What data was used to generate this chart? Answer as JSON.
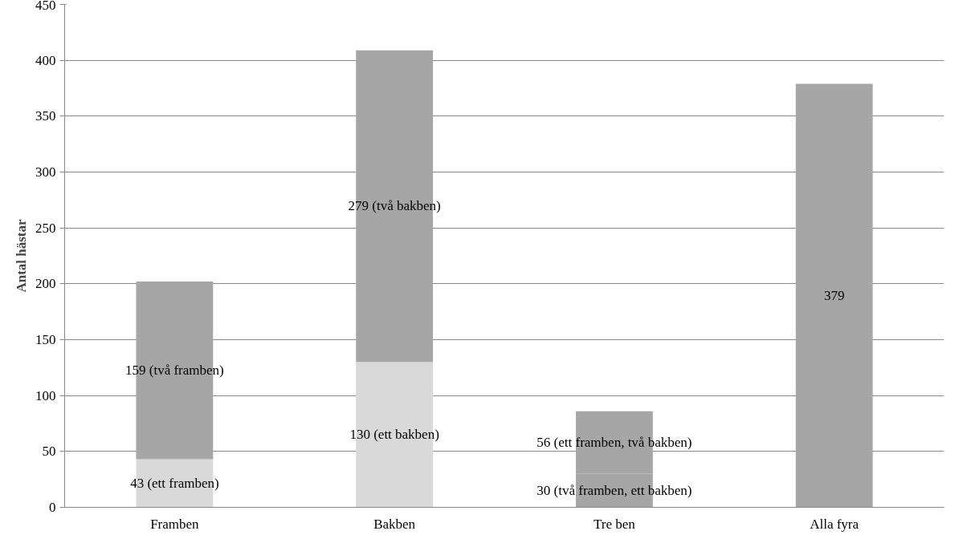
{
  "chart_data": {
    "type": "bar",
    "stacked": true,
    "ylabel": "Antal hästar",
    "categories": [
      "Framben",
      "Bakben",
      "Tre ben",
      "Alla fyra"
    ],
    "series": [
      {
        "colors": [
          "#d9d9d9",
          "#d9d9d9",
          "#a6a6a6",
          "#a6a6a6"
        ],
        "values": [
          43,
          130,
          30,
          null
        ],
        "value_labels": [
          "43 (ett framben)",
          "130 (ett bakben)",
          "30 (två framben, ett bakben)",
          null
        ]
      },
      {
        "colors": [
          "#a6a6a6",
          "#a6a6a6",
          "#a6a6a6",
          "#a6a6a6"
        ],
        "values": [
          159,
          279,
          56,
          379
        ],
        "value_labels": [
          "159 (två framben)",
          "279 (två bakben)",
          "56 (ett framben, två bakben)",
          "379"
        ]
      }
    ],
    "ylim": [
      0,
      450
    ],
    "yticks": [
      0,
      50,
      100,
      150,
      200,
      250,
      300,
      350,
      400,
      450
    ],
    "grid": "y"
  }
}
